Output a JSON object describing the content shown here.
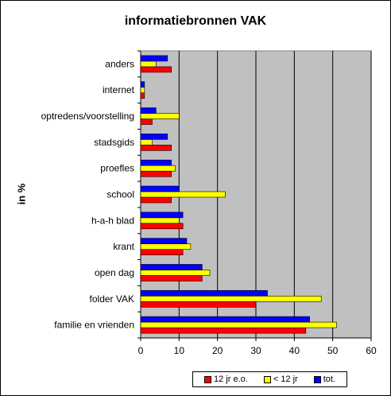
{
  "chart_data": {
    "type": "bar",
    "orientation": "horizontal",
    "title": "informatiebronnen VAK",
    "xlabel": "",
    "ylabel": "in %",
    "xlim": [
      0,
      60
    ],
    "xticks": [
      0,
      10,
      20,
      30,
      40,
      50,
      60
    ],
    "grid": true,
    "plot_background": "#c0c0c0",
    "legend_position": "bottom-right",
    "categories": [
      "anders",
      "internet",
      "optredens/voorstelling",
      "stadsgids",
      "proefles",
      "school",
      "h-a-h blad",
      "krant",
      "open dag",
      "folder VAK",
      "familie en vrienden"
    ],
    "series": [
      {
        "name": "12 jr e.o.",
        "color": "#ff0000",
        "values": [
          8,
          1,
          3,
          8,
          8,
          8,
          11,
          11,
          16,
          30,
          43
        ]
      },
      {
        "name": "< 12 jr",
        "color": "#ffff00",
        "values": [
          4,
          1,
          10,
          3,
          9,
          22,
          10,
          13,
          18,
          47,
          51
        ]
      },
      {
        "name": "tot.",
        "color": "#0000ff",
        "values": [
          7,
          1,
          4,
          7,
          8,
          10,
          11,
          12,
          16,
          33,
          44
        ]
      }
    ]
  }
}
